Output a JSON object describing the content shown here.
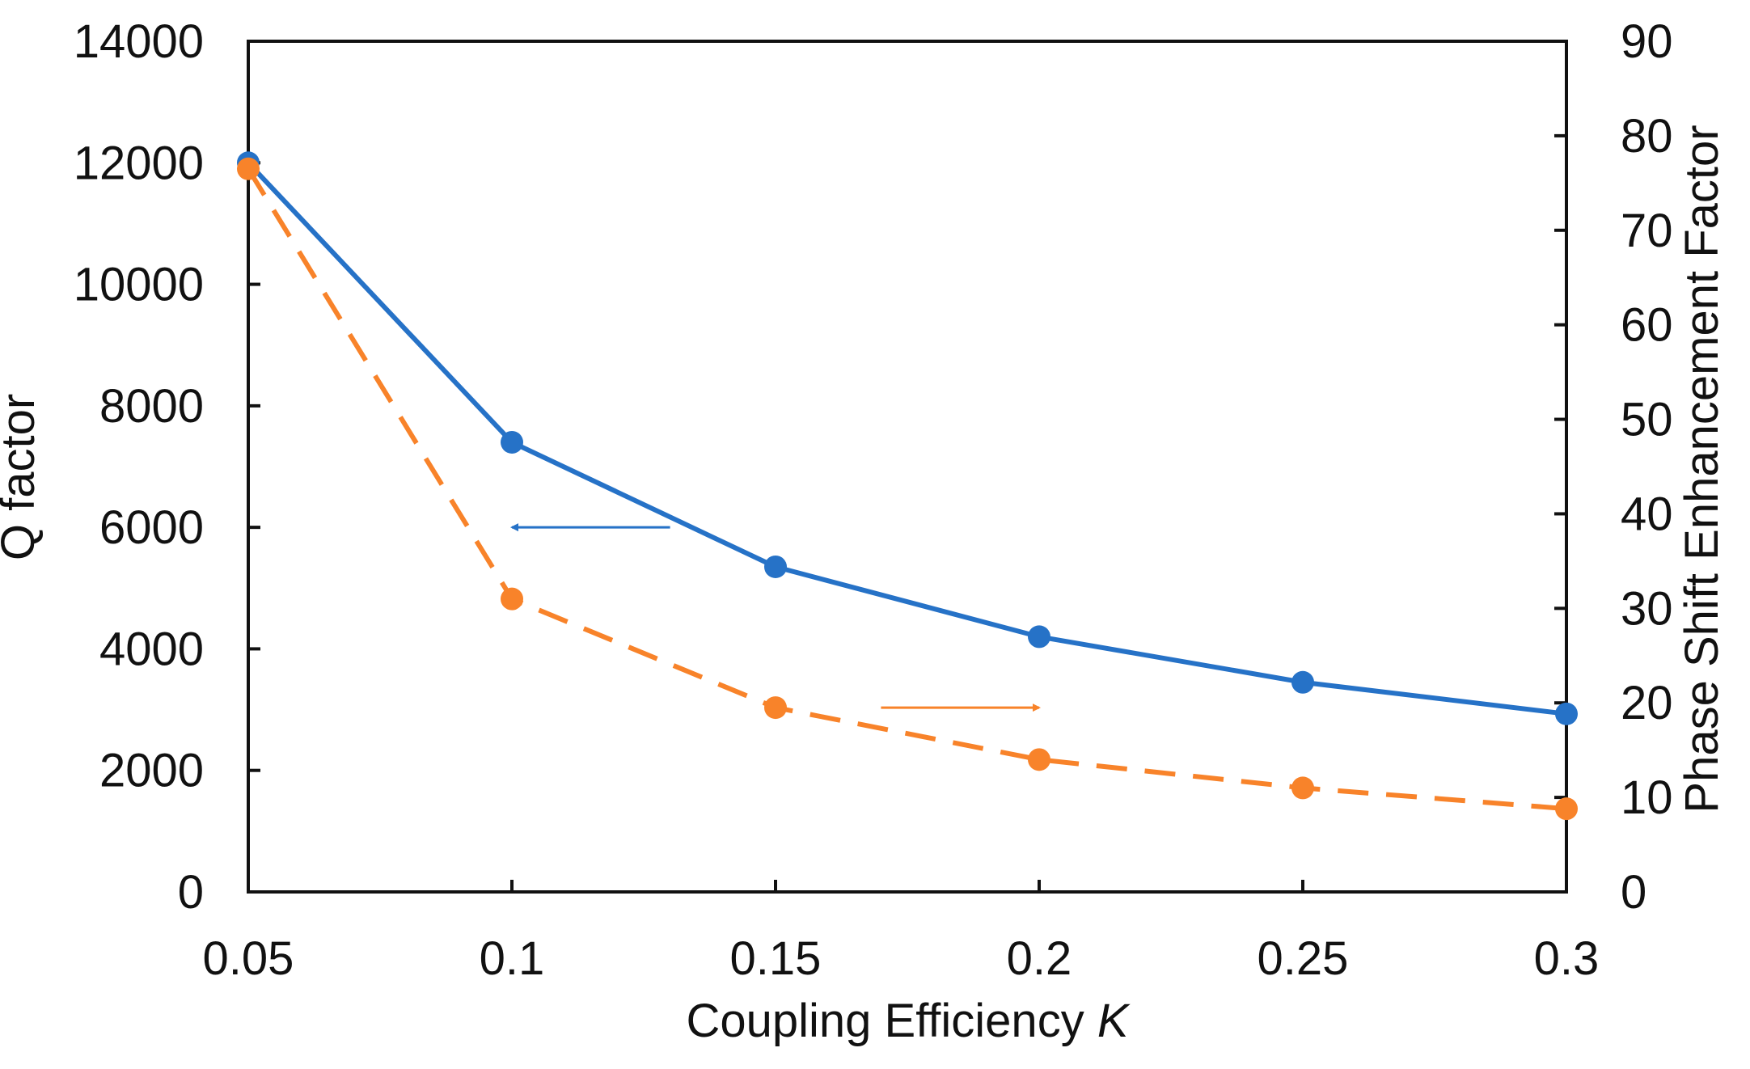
{
  "chart_data": {
    "type": "line",
    "title": "",
    "x": [
      0.05,
      0.1,
      0.15,
      0.2,
      0.25,
      0.3
    ],
    "x_ticks": [
      0.05,
      0.1,
      0.15,
      0.2,
      0.25,
      0.3
    ],
    "x_tick_labels": [
      "0.05",
      "0.1",
      "0.15",
      "0.2",
      "0.25",
      "0.3"
    ],
    "xlim": [
      0.05,
      0.3
    ],
    "xlabel": {
      "prefix": "Coupling Efficiency ",
      "symbol": "K"
    },
    "y_left": {
      "label": "Q factor",
      "lim": [
        0,
        14000
      ],
      "ticks": [
        0,
        2000,
        4000,
        6000,
        8000,
        10000,
        12000,
        14000
      ],
      "tick_labels": [
        "0",
        "2000",
        "4000",
        "6000",
        "8000",
        "10000",
        "12000",
        "14000"
      ]
    },
    "y_right": {
      "label": "Phase Shift Enhancement Factor",
      "lim": [
        0,
        90
      ],
      "ticks": [
        0,
        10,
        20,
        30,
        40,
        50,
        60,
        70,
        80,
        90
      ],
      "tick_labels": [
        "0",
        "10",
        "20",
        "30",
        "40",
        "50",
        "60",
        "70",
        "80",
        "90"
      ]
    },
    "series": [
      {
        "name": "Q factor",
        "axis": "left",
        "style": "solid",
        "color": "#2672C7",
        "values": [
          12000,
          7400,
          5350,
          4200,
          3450,
          2930
        ]
      },
      {
        "name": "Phase Shift Enhancement Factor",
        "axis": "right",
        "style": "dashed",
        "color": "#F8832A",
        "values": [
          76.5,
          31,
          19.5,
          14,
          11,
          8.8
        ]
      }
    ],
    "annotations": [
      {
        "name": "left-axis-arrow",
        "direction": "left",
        "color": "#2672C7",
        "from": {
          "x": 0.13,
          "y_left": 6000
        },
        "to": {
          "x": 0.1,
          "y_left": 6000
        }
      },
      {
        "name": "right-axis-arrow",
        "direction": "right",
        "color": "#F8832A",
        "from": {
          "x": 0.17,
          "y_right": 19.5
        },
        "to": {
          "x": 0.2,
          "y_right": 19.5
        }
      }
    ],
    "grid": false,
    "legend": "none"
  }
}
